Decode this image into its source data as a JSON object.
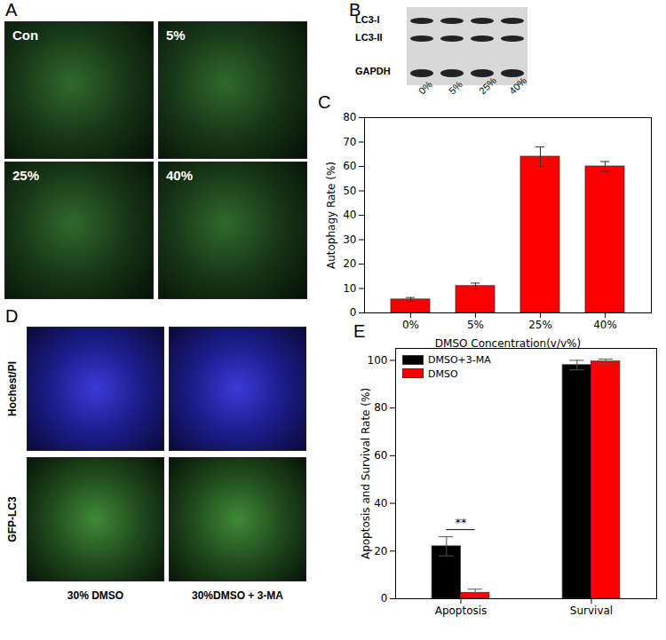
{
  "panel_letters": [
    "A",
    "B",
    "C",
    "D",
    "E"
  ],
  "panel_a": {
    "labels": [
      "Con",
      "5%",
      "25%",
      "40%"
    ]
  },
  "panel_b": {
    "bands": [
      "LC3-I",
      "LC3-II",
      "GAPDH"
    ],
    "lanes": [
      "0%",
      "5%",
      "25%",
      "40%"
    ]
  },
  "panel_d": {
    "rows": [
      "Hochest/PI",
      "GFP-LC3"
    ],
    "columns": [
      "30% DMSO",
      "30%DMSO + 3-MA"
    ]
  },
  "chart_data": [
    {
      "type": "bar",
      "x_label": "DMSO Concentration(v/v%)",
      "y_label": "Autophagy Rate (%)",
      "categories": [
        "0%",
        "5%",
        "25%",
        "40%"
      ],
      "values": [
        5.5,
        11,
        64,
        60
      ],
      "errors": [
        0.8,
        1.2,
        4,
        2
      ],
      "color": "#ff0000",
      "ylim": [
        0,
        80
      ],
      "yticks": [
        0,
        10,
        20,
        30,
        40,
        50,
        60,
        70,
        80
      ],
      "grid": false
    },
    {
      "type": "bar",
      "y_label": "Apoptosis and Survival Rate (%)",
      "categories": [
        "Apoptosis",
        "Survival"
      ],
      "series": [
        {
          "name": "DMSO+3-MA",
          "color": "#000000",
          "values": [
            22,
            98
          ],
          "errors": [
            4,
            2
          ]
        },
        {
          "name": "DMSO",
          "color": "#ff0000",
          "values": [
            2.5,
            99.5
          ],
          "errors": [
            1.5,
            1
          ]
        }
      ],
      "ylim": [
        0,
        105
      ],
      "yticks": [
        0,
        20,
        40,
        60,
        80,
        100
      ],
      "grid": false,
      "legend": "upper left",
      "annotations": [
        {
          "text": "**",
          "category": "Apoptosis"
        }
      ]
    }
  ]
}
